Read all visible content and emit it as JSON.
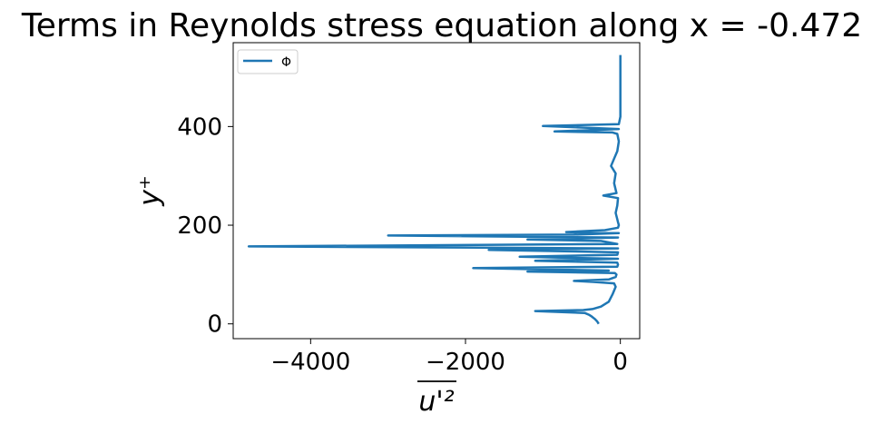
{
  "chart_data": {
    "type": "line",
    "title": "Terms in Reynolds stress equation along x = -0.472",
    "xlabel": "u'²",
    "ylabel": "y⁺",
    "xlim": [
      -5000,
      250
    ],
    "ylim": [
      -30,
      570
    ],
    "xticks": [
      -4000,
      -2000,
      0
    ],
    "xtick_labels": [
      "−4000",
      "−2000",
      "0"
    ],
    "yticks": [
      0,
      200,
      400
    ],
    "ytick_labels": [
      "0",
      "200",
      "400"
    ],
    "grid": false,
    "legend_position": "top-left",
    "series": [
      {
        "name": "Φ",
        "color": "#1f77b4",
        "points": [
          [
            -280,
            0
          ],
          [
            -300,
            5
          ],
          [
            -330,
            10
          ],
          [
            -370,
            15
          ],
          [
            -400,
            18
          ],
          [
            -460,
            22
          ],
          [
            -1100,
            26
          ],
          [
            -480,
            28
          ],
          [
            -360,
            30
          ],
          [
            -250,
            35
          ],
          [
            -150,
            45
          ],
          [
            -100,
            60
          ],
          [
            -60,
            75
          ],
          [
            -80,
            82
          ],
          [
            -350,
            85
          ],
          [
            -600,
            87
          ],
          [
            -150,
            90
          ],
          [
            -60,
            95
          ],
          [
            -50,
            100
          ],
          [
            -70,
            103
          ],
          [
            -1200,
            106
          ],
          [
            -150,
            108
          ],
          [
            -1900,
            113
          ],
          [
            -40,
            116
          ],
          [
            -30,
            120
          ],
          [
            -40,
            124
          ],
          [
            -1100,
            128
          ],
          [
            -30,
            132
          ],
          [
            -1300,
            136
          ],
          [
            -40,
            140
          ],
          [
            -30,
            145
          ],
          [
            -1700,
            150
          ],
          [
            -30,
            153
          ],
          [
            -4800,
            157
          ],
          [
            -40,
            162
          ],
          [
            -250,
            168
          ],
          [
            -1200,
            171
          ],
          [
            -30,
            175
          ],
          [
            -3000,
            179
          ],
          [
            -600,
            181
          ],
          [
            -20,
            184
          ],
          [
            -700,
            186
          ],
          [
            -200,
            190
          ],
          [
            -30,
            195
          ],
          [
            -20,
            200
          ],
          [
            -30,
            206
          ],
          [
            -40,
            212
          ],
          [
            -60,
            225
          ],
          [
            -40,
            240
          ],
          [
            -30,
            255
          ],
          [
            -220,
            260
          ],
          [
            -50,
            265
          ],
          [
            -80,
            285
          ],
          [
            -60,
            305
          ],
          [
            -120,
            320
          ],
          [
            -80,
            335
          ],
          [
            -40,
            350
          ],
          [
            -20,
            370
          ],
          [
            -40,
            385
          ],
          [
            -100,
            388
          ],
          [
            -850,
            390
          ],
          [
            -500,
            392
          ],
          [
            -20,
            395
          ],
          [
            -1000,
            401
          ],
          [
            -20,
            405
          ],
          [
            0,
            420
          ],
          [
            0,
            480
          ],
          [
            0,
            545
          ]
        ]
      }
    ]
  }
}
